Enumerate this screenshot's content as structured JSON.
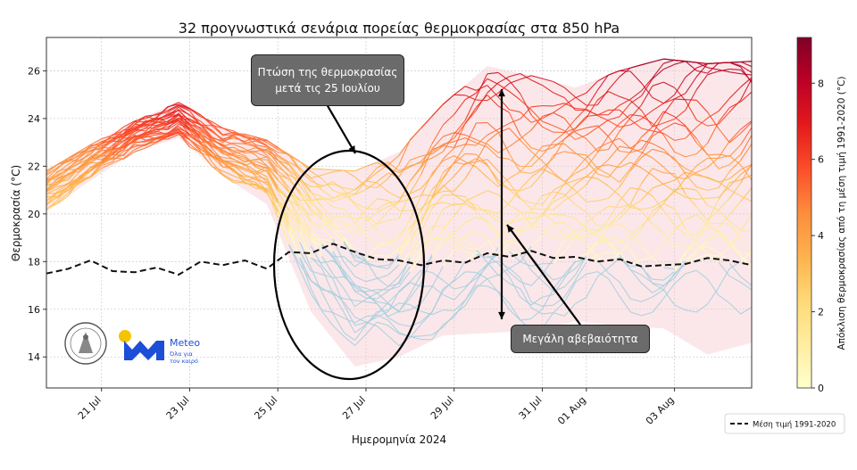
{
  "chart_data": {
    "type": "line",
    "title": "32 προγνωστικά σενάρια πορείας θερμοκρασίας στα 850 hPa",
    "xlabel": "Ημερομηνία 2024",
    "ylabel": "Θερμοκρασία (°C)",
    "xlim": [
      0,
      16
    ],
    "ylim": [
      12.7,
      27.4
    ],
    "x_ticks": [
      {
        "label": "21 Jul",
        "x": 1.25
      },
      {
        "label": "23 Jul",
        "x": 3.25
      },
      {
        "label": "25 Jul",
        "x": 5.25
      },
      {
        "label": "27 Jul",
        "x": 7.25
      },
      {
        "label": "29 Jul",
        "x": 9.25
      },
      {
        "label": "31 Jul",
        "x": 11.25
      },
      {
        "label": "01 Aug",
        "x": 12.25
      },
      {
        "label": "03 Aug",
        "x": 14.25
      }
    ],
    "y_ticks": [
      14,
      16,
      18,
      20,
      22,
      24,
      26
    ],
    "grid": true,
    "climatology": {
      "name": "Μέση τιμή 1991-2020",
      "x": [
        0,
        0.5,
        1,
        1.5,
        2,
        2.5,
        3,
        3.5,
        4,
        4.5,
        5,
        5.5,
        6,
        6.5,
        7,
        7.5,
        8,
        8.5,
        9,
        9.5,
        10,
        10.5,
        11,
        11.5,
        12,
        12.5,
        13,
        13.5,
        14,
        14.5,
        15,
        15.5,
        16
      ],
      "y": [
        17.5,
        17.7,
        18.05,
        17.6,
        17.55,
        17.75,
        17.45,
        18.0,
        17.85,
        18.05,
        17.7,
        18.4,
        18.35,
        18.75,
        18.4,
        18.1,
        18.05,
        17.85,
        18.05,
        17.95,
        18.35,
        18.2,
        18.45,
        18.15,
        18.2,
        18.0,
        18.1,
        17.8,
        17.85,
        17.9,
        18.15,
        18.05,
        17.85
      ]
    },
    "ensemble_mean": {
      "x": [
        0,
        1,
        2,
        3,
        4,
        5,
        6,
        7,
        8,
        9,
        10,
        11,
        12,
        13,
        14,
        15,
        16
      ],
      "y": [
        21.0,
        22.2,
        23.3,
        24.0,
        22.6,
        22.0,
        19.6,
        18.2,
        18.4,
        20.2,
        21.0,
        20.6,
        20.9,
        21.4,
        21.7,
        21.8,
        22.1
      ]
    },
    "spread": {
      "x": [
        0,
        1,
        2,
        3,
        4,
        5,
        6,
        7,
        8,
        9,
        10,
        11,
        12,
        13,
        14,
        15,
        16
      ],
      "upper": [
        21.8,
        22.9,
        23.9,
        24.7,
        23.6,
        23.1,
        21.9,
        21.8,
        22.6,
        24.6,
        26.2,
        25.8,
        25.3,
        26.0,
        26.5,
        26.3,
        26.4
      ],
      "lower": [
        20.1,
        21.4,
        22.6,
        23.2,
        21.6,
        20.4,
        15.9,
        13.6,
        14.0,
        14.9,
        15.0,
        15.1,
        15.5,
        15.3,
        15.2,
        14.1,
        14.6
      ]
    },
    "scenario_count": 32,
    "annotations": [
      {
        "text": "Πτώση της θερμοκρασίας μετά τις 25 Ιουλίου"
      },
      {
        "text": "Μεγάλη αβεβαιότητα"
      }
    ],
    "colorbar": {
      "label": "Απόκλιση θερμοκρασίας από τη μέση τιμή 1991-2020 (°C)",
      "min": 0,
      "max": 9.2,
      "ticks": [
        0,
        2,
        4,
        6,
        8
      ],
      "colors": [
        "#ffffcc",
        "#ffeda0",
        "#fed976",
        "#feb24c",
        "#fd8d3c",
        "#fc4e2a",
        "#e31a1c",
        "#bd0026",
        "#800026"
      ],
      "below_color": "#a6cfe0"
    },
    "legend": {
      "position": "bottom-right",
      "entry": "Μέση τιμή 1991-2020"
    }
  },
  "logos": {
    "meteo_name": "Meteo",
    "meteo_tagline_1": "Όλα για",
    "meteo_tagline_2": "τον καιρό"
  }
}
